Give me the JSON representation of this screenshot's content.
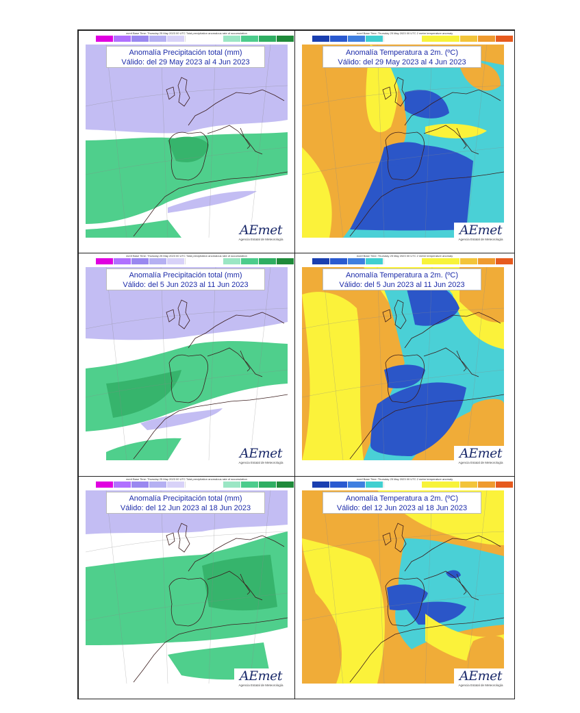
{
  "panels": [
    {
      "kind": "precip",
      "basetime": "ecmf Base Time: Thursday 25 May 2023 00 UTC Total precipitation anomalous rate of accumulation",
      "title": "Anomalía Precipitación total (mm)",
      "valid": "Válido: del 29 May 2023 al 4 Jun 2023"
    },
    {
      "kind": "temp",
      "basetime": "ecmf Base Time: Thursday 25 May 2023 00 UTC 2 metre temperature anomaly",
      "title": "Anomalía Temperatura a 2m. (ºC)",
      "valid": "Válido: del 29 May 2023 al 4 Jun 2023"
    },
    {
      "kind": "precip",
      "basetime": "ecmf Base Time: Thursday 25 May 2023 00 UTC Total precipitation anomalous rate of accumulation",
      "title": "Anomalía Precipitación total (mm)",
      "valid": "Válido: del 5 Jun 2023 al 11 Jun 2023"
    },
    {
      "kind": "temp",
      "basetime": "ecmf Base Time: Thursday 25 May 2023 00 UTC 2 metre temperature anomaly",
      "title": "Anomalía Temperatura a 2m. (ºC)",
      "valid": "Válido: del 5 Jun 2023 al 11 Jun 2023"
    },
    {
      "kind": "precip",
      "basetime": "ecmf Base Time: Thursday 25 May 2023 00 UTC Total precipitation anomalous rate of accumulation",
      "title": "Anomalía Precipitación total (mm)",
      "valid": "Válido: del 12 Jun 2023 al 18 Jun 2023"
    },
    {
      "kind": "temp",
      "basetime": "ecmf Base Time: Thursday 25 May 2023 00 UTC 2 metre temperature anomaly",
      "title": "Anomalía Temperatura a 2m. (ºC)",
      "valid": "Válido: del 12 Jun 2023 al 18 Jun 2023"
    }
  ],
  "logo": {
    "wordmark_a": "A",
    "wordmark_rest": "Emet",
    "subtitle": "Agencia Estatal de Meteorología"
  },
  "colors": {
    "precip_legend": [
      "#e000e0",
      "#b070ff",
      "#9a88f0",
      "#b5b0f2",
      "#d8d2f8",
      "#ffffff",
      "#9be6c4",
      "#4ccc8c",
      "#2fae62",
      "#1f8a3a"
    ],
    "temp_legend": [
      "#1a3fb0",
      "#2a5ad0",
      "#3f7fe0",
      "#41cfd0",
      "#ffffff",
      "#f7f33a",
      "#f3c43a",
      "#ef9a2e",
      "#e65a1e"
    ],
    "precip_dry": "#c3bdf3",
    "precip_wet": "#4fcf8c",
    "precip_wet_strong": "#36b46c",
    "temp_warm": "#f0ac38",
    "temp_mild": "#fbf23a",
    "temp_cool": "#4ad0d6",
    "temp_cold": "#2b56c8",
    "title_text": "#1b2aa8"
  }
}
